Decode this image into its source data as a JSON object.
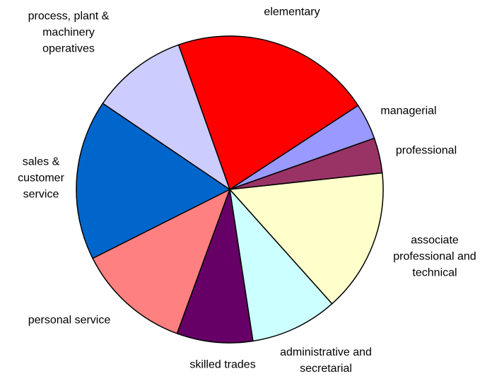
{
  "chart_data": {
    "type": "pie",
    "categories": [
      "elementary",
      "managerial",
      "professional",
      "associate professional and technical",
      "administrative and secretarial",
      "skilled trades",
      "personal service",
      "sales & customer service",
      "process, plant & machinery operatives"
    ],
    "values": [
      21.2,
      3.8,
      3.7,
      15.1,
      9.2,
      8.0,
      12.0,
      16.9,
      10.1
    ],
    "colors": [
      "#ff0000",
      "#9999ff",
      "#993366",
      "#ffffcc",
      "#ccffff",
      "#660066",
      "#ff8080",
      "#0066cc",
      "#ccccff"
    ]
  }
}
